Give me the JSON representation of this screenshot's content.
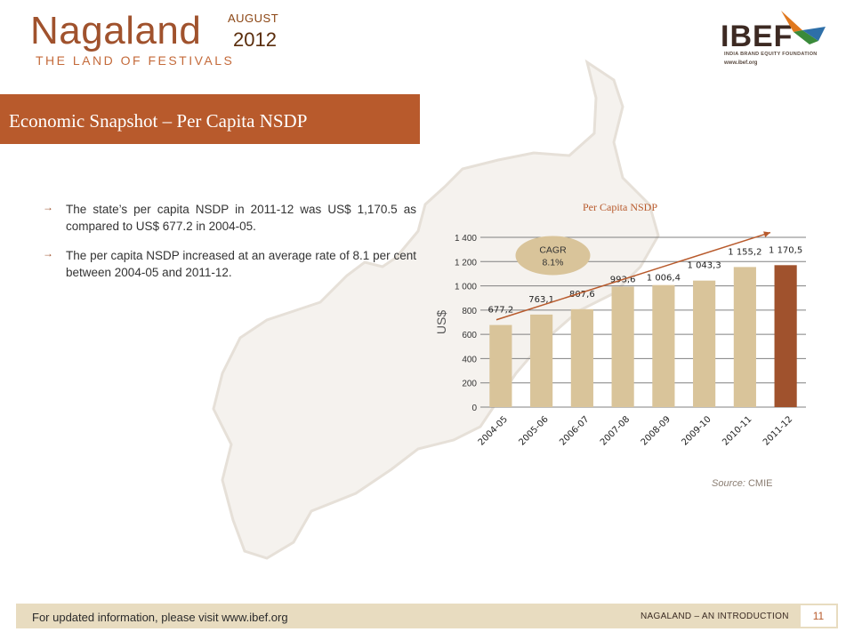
{
  "header": {
    "title": "Nagaland",
    "tagline": "THE LAND OF FESTIVALS",
    "month": "AUGUST",
    "year": "2012"
  },
  "logo": {
    "name": "IBEF",
    "subtitle": "INDIA BRAND EQUITY FOUNDATION",
    "url": "www.ibef.org"
  },
  "banner": {
    "title": "Economic Snapshot – Per Capita NSDP"
  },
  "bullets": [
    "The state’s per capita NSDP in 2011-12 was US$ 1,170.5 as compared to US$ 677.2 in 2004-05.",
    "The per capita NSDP increased at an average rate of 8.1 per cent between 2004-05 and 2011-12."
  ],
  "chart_data": {
    "type": "bar",
    "title": "Per Capita NSDP",
    "ylabel": "US$",
    "xlabel": "",
    "categories": [
      "2004-05",
      "2005-06",
      "2006-07",
      "2007-08",
      "2008-09",
      "2009-10",
      "2010-11",
      "2011-12"
    ],
    "values": [
      677.2,
      763.1,
      807.6,
      993.6,
      1006.4,
      1043.3,
      1155.2,
      1170.5
    ],
    "value_labels": [
      "677,2",
      "763,1",
      "807,6",
      "993,6",
      "1 006,4",
      "1 043,3",
      "1 155,2",
      "1 170,5"
    ],
    "ylim": [
      0,
      1400
    ],
    "yticks": [
      0,
      200,
      400,
      600,
      800,
      1000,
      1200,
      1400
    ],
    "ytick_labels": [
      "0",
      "200",
      "400",
      "600",
      "800",
      "1 000",
      "1 200",
      "1 400"
    ],
    "grid": true,
    "annotation": {
      "line1": "CAGR",
      "line2": "8.1%"
    },
    "colors": {
      "bar": "#d9c49a",
      "highlight": "#a0522d",
      "arrow": "#b85a2c",
      "annotation_bg": "#d9c49a"
    }
  },
  "source": {
    "label": "Source:",
    "value": "CMIE"
  },
  "footer": {
    "left_text": "For updated information, please visit www.ibef.org",
    "right_text": "NAGALAND – AN INTRODUCTION",
    "page": "11"
  }
}
